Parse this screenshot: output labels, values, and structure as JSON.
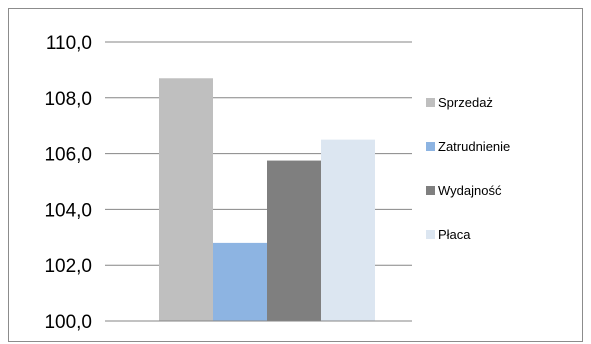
{
  "chart_data": {
    "type": "bar",
    "categories": [
      "Sprzedaż",
      "Zatrudnienie",
      "Wydajność",
      "Płaca"
    ],
    "values": [
      108.7,
      102.8,
      105.75,
      106.5
    ],
    "ylim": [
      100,
      110
    ],
    "yticks": [
      100,
      102,
      104,
      106,
      108,
      110
    ],
    "ytick_labels": [
      "100,0",
      "102,0",
      "104,0",
      "106,0",
      "108,0",
      "110,0"
    ],
    "grid": true,
    "legend_position": "right",
    "colors": [
      "#bfbfbf",
      "#8db4e2",
      "#7f7f7f",
      "#dce6f1"
    ]
  }
}
